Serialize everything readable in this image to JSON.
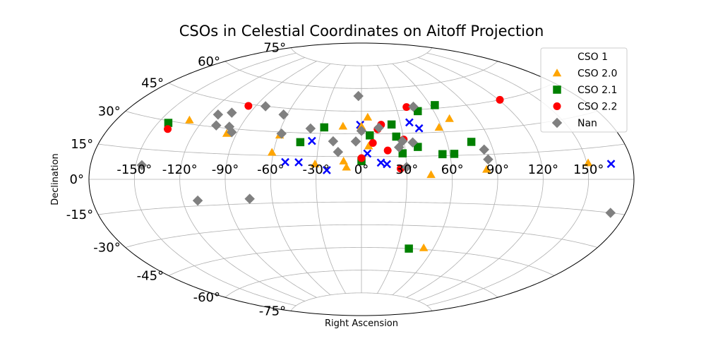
{
  "chart_data": {
    "type": "scatter",
    "projection": "aitoff",
    "title": "CSOs in Celestial Coordinates on Aitoff Projection",
    "xlabel": "Right Ascension",
    "ylabel": "Declination",
    "grid": true,
    "legend_position": "upper right",
    "x_ticks": [
      "-150°",
      "-120°",
      "-90°",
      "-60°",
      "-30°",
      "0°",
      "30°",
      "60°",
      "90°",
      "120°",
      "150°"
    ],
    "y_ticks": [
      "-75°",
      "-60°",
      "-45°",
      "-30°",
      "-15°",
      "0°",
      "15°",
      "30°",
      "45°",
      "60°",
      "75°"
    ],
    "series": [
      {
        "name": "CSO 1",
        "marker": "x",
        "color": "#0000ff",
        "points": [
          [
            -51,
            11
          ],
          [
            -42,
            11
          ],
          [
            -35,
            25
          ],
          [
            -23,
            6
          ],
          [
            -1,
            36
          ],
          [
            4,
            17
          ],
          [
            13,
            11
          ],
          [
            17,
            10
          ],
          [
            37,
            37
          ],
          [
            43,
            33
          ],
          [
            166,
            7
          ]
        ]
      },
      {
        "name": "CSO 2.0",
        "marker": "triangle",
        "color": "#ffa500",
        "points": [
          [
            -130,
            32
          ],
          [
            -97,
            27
          ],
          [
            -59,
            28
          ],
          [
            -61,
            17
          ],
          [
            -31,
            10
          ],
          [
            -14,
            35
          ],
          [
            -12,
            12
          ],
          [
            -10,
            8
          ],
          [
            0,
            35
          ],
          [
            5,
            41
          ],
          [
            5,
            22
          ],
          [
            46,
            3
          ],
          [
            58,
            33
          ],
          [
            69,
            38
          ],
          [
            83,
            6
          ],
          [
            151,
            8
          ],
          [
            52,
            -44
          ]
        ]
      },
      {
        "name": "CSO 2.1",
        "marker": "square",
        "color": "#008000",
        "points": [
          [
            -143,
            29
          ],
          [
            -43,
            24
          ],
          [
            -28,
            34
          ],
          [
            0,
            12
          ],
          [
            6,
            29
          ],
          [
            23,
            36
          ],
          [
            25,
            28
          ],
          [
            28,
            17
          ],
          [
            39,
            21
          ],
          [
            55,
            16
          ],
          [
            63,
            16
          ],
          [
            47,
            44
          ],
          [
            64,
            47
          ],
          [
            77,
            23
          ],
          [
            40,
            -45
          ]
        ]
      },
      {
        "name": "CSO 2.2",
        "marker": "circle",
        "color": "#ff0000",
        "points": [
          [
            -140,
            26
          ],
          [
            -96,
            44
          ],
          [
            0,
            14
          ],
          [
            8,
            24
          ],
          [
            12,
            33
          ],
          [
            15,
            36
          ],
          [
            18,
            19
          ],
          [
            26,
            7
          ],
          [
            30,
            26
          ],
          [
            39,
            47
          ],
          [
            121,
            45
          ]
        ]
      },
      {
        "name": "Nan",
        "marker": "diamond",
        "color": "#808080",
        "points": [
          [
            -146,
            7
          ],
          [
            -113,
            37
          ],
          [
            -104,
            39
          ],
          [
            -108,
            31
          ],
          [
            -98,
            31
          ],
          [
            -94,
            28
          ],
          [
            -82,
            45
          ],
          [
            -63,
            41
          ],
          [
            -58,
            29
          ],
          [
            -38,
            33
          ],
          [
            -20,
            25
          ],
          [
            -16,
            18
          ],
          [
            -4,
            25
          ],
          [
            -3,
            55
          ],
          [
            0,
            32
          ],
          [
            13,
            34
          ],
          [
            26,
            21
          ],
          [
            29,
            25
          ],
          [
            36,
            24
          ],
          [
            45,
            47
          ],
          [
            30,
            8
          ],
          [
            84,
            18
          ],
          [
            85,
            12
          ],
          [
            -110,
            -12
          ],
          [
            -75,
            -12
          ],
          [
            170,
            -15
          ]
        ]
      }
    ]
  }
}
